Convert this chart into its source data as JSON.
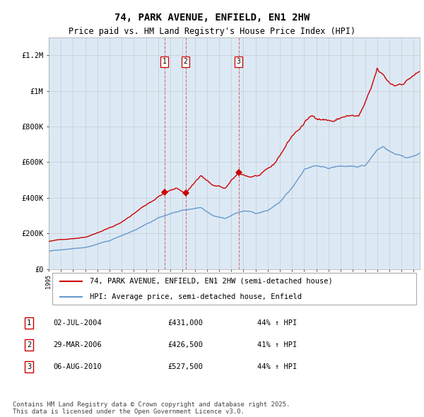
{
  "title": "74, PARK AVENUE, ENFIELD, EN1 2HW",
  "subtitle": "Price paid vs. HM Land Registry's House Price Index (HPI)",
  "background_color": "#dce9f5",
  "plot_bg_color": "#dce9f5",
  "red_line_label": "74, PARK AVENUE, ENFIELD, EN1 2HW (semi-detached house)",
  "blue_line_label": "HPI: Average price, semi-detached house, Enfield",
  "transactions": [
    {
      "num": 1,
      "date": "02-JUL-2004",
      "price": 431000,
      "pct": "44%",
      "dir": "↑",
      "x_year": 2004.5
    },
    {
      "num": 2,
      "date": "29-MAR-2006",
      "price": 426500,
      "pct": "41%",
      "dir": "↑",
      "x_year": 2006.25
    },
    {
      "num": 3,
      "date": "06-AUG-2010",
      "price": 527500,
      "pct": "44%",
      "dir": "↑",
      "x_year": 2010.6
    }
  ],
  "footnote": "Contains HM Land Registry data © Crown copyright and database right 2025.\nThis data is licensed under the Open Government Licence v3.0.",
  "ylim": [
    0,
    1300000
  ],
  "xlim_start": 1995.0,
  "xlim_end": 2025.5,
  "ytick_labels": [
    "£0",
    "£200K",
    "£400K",
    "£600K",
    "£800K",
    "£1M",
    "£1.2M"
  ],
  "ytick_values": [
    0,
    200000,
    400000,
    600000,
    800000,
    1000000,
    1200000
  ],
  "red_color": "#cc0000",
  "blue_color": "#6699cc",
  "marker_color": "#cc0000",
  "vline_color": "#cc6666",
  "grid_color": "#aaaaaa",
  "title_fontsize": 10,
  "subtitle_fontsize": 8.5,
  "axis_fontsize": 7.5,
  "legend_fontsize": 7.5,
  "table_fontsize": 7.5,
  "footnote_fontsize": 6.5
}
